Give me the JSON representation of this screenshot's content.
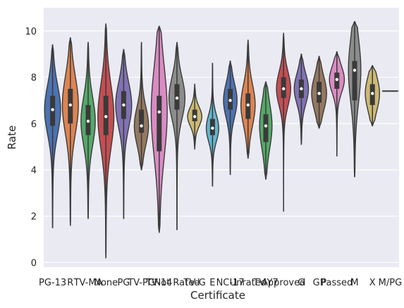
{
  "chart_data": {
    "type": "violin",
    "xlabel": "Certificate",
    "ylabel": "Rate",
    "ylim": [
      -0.2,
      11.0
    ],
    "yticks": [
      0,
      2,
      4,
      6,
      8,
      10
    ],
    "grid": true,
    "categories": [
      "PG-13",
      "R",
      "TV-MA",
      "None",
      "PG",
      "TV-PG",
      "TV-14",
      "Not Rated",
      "TV-G",
      "E",
      "NC-17",
      "Unrated",
      "TV-Y7",
      "Approved",
      "G",
      "GP",
      "Passed",
      "M",
      "X",
      "M/PG"
    ],
    "tick_labels": [
      "PG-13",
      "R",
      "TV-MA",
      "None",
      "PG",
      "TV-PG",
      "TV-14",
      "Not Rated",
      "TV-G",
      "E",
      "NC-17",
      "Unrated",
      "TV-Y7",
      "Approved",
      "G",
      "GP",
      "Passed",
      "M",
      "X",
      "M/PG"
    ],
    "series": [
      {
        "category": "PG-13",
        "color": "#4c72b0",
        "min": 1.5,
        "q1": 5.9,
        "median": 6.6,
        "q3": 7.2,
        "max": 9.4,
        "maxw": 0.45
      },
      {
        "category": "R",
        "color": "#dd8452",
        "min": 1.6,
        "q1": 6.0,
        "median": 6.8,
        "q3": 7.5,
        "max": 9.7,
        "maxw": 0.45
      },
      {
        "category": "TV-MA",
        "color": "#55a868",
        "min": 1.9,
        "q1": 5.5,
        "median": 6.1,
        "q3": 6.8,
        "max": 9.5,
        "maxw": 0.4
      },
      {
        "category": "None",
        "color": "#c44e52",
        "min": 0.2,
        "q1": 5.5,
        "median": 6.3,
        "q3": 7.2,
        "max": 10.3,
        "maxw": 0.45
      },
      {
        "category": "PG",
        "color": "#8172b3",
        "min": 1.9,
        "q1": 6.2,
        "median": 6.8,
        "q3": 7.4,
        "max": 9.2,
        "maxw": 0.45
      },
      {
        "category": "TV-PG",
        "color": "#937860",
        "min": 4.0,
        "q1": 5.6,
        "median": 5.9,
        "q3": 6.6,
        "max": 9.5,
        "maxw": 0.4
      },
      {
        "category": "TV-14",
        "color": "#da8bc3",
        "min": 1.3,
        "q1": 4.8,
        "median": 6.5,
        "q3": 7.2,
        "max": 10.2,
        "maxw": 0.45
      },
      {
        "category": "Not Rated",
        "color": "#8c8c8c",
        "min": 1.4,
        "q1": 6.6,
        "median": 7.1,
        "q3": 7.7,
        "max": 9.5,
        "maxw": 0.45
      },
      {
        "category": "TV-G",
        "color": "#ccb974",
        "min": 4.9,
        "q1": 6.1,
        "median": 6.3,
        "q3": 6.6,
        "max": 7.7,
        "maxw": 0.4
      },
      {
        "category": "E",
        "color": "#64b5cd",
        "min": 3.3,
        "q1": 5.5,
        "median": 5.8,
        "q3": 6.2,
        "max": 8.6,
        "maxw": 0.35
      },
      {
        "category": "NC-17",
        "color": "#4c72b0",
        "min": 3.8,
        "q1": 6.6,
        "median": 7.0,
        "q3": 7.5,
        "max": 8.7,
        "maxw": 0.38
      },
      {
        "category": "Unrated",
        "color": "#dd8452",
        "min": 4.5,
        "q1": 6.2,
        "median": 6.8,
        "q3": 7.3,
        "max": 9.6,
        "maxw": 0.4
      },
      {
        "category": "TV-Y7",
        "color": "#55a868",
        "min": 3.6,
        "q1": 5.2,
        "median": 5.9,
        "q3": 6.4,
        "max": 7.8,
        "maxw": 0.35
      },
      {
        "category": "Approved",
        "color": "#c44e52",
        "min": 2.2,
        "q1": 7.1,
        "median": 7.5,
        "q3": 8.0,
        "max": 9.9,
        "maxw": 0.4
      },
      {
        "category": "G",
        "color": "#8172b3",
        "min": 5.1,
        "q1": 7.1,
        "median": 7.5,
        "q3": 7.9,
        "max": 9.0,
        "maxw": 0.4
      },
      {
        "category": "GP",
        "color": "#937860",
        "min": 5.8,
        "q1": 6.9,
        "median": 7.3,
        "q3": 7.8,
        "max": 8.9,
        "maxw": 0.42
      },
      {
        "category": "Passed",
        "color": "#da8bc3",
        "min": 4.6,
        "q1": 7.5,
        "median": 7.9,
        "q3": 8.2,
        "max": 9.1,
        "maxw": 0.42
      },
      {
        "category": "M",
        "color": "#8c8c8c",
        "min": 3.7,
        "q1": 7.0,
        "median": 8.3,
        "q3": 8.7,
        "max": 10.4,
        "maxw": 0.35
      },
      {
        "category": "X",
        "color": "#ccb974",
        "min": 5.9,
        "q1": 6.8,
        "median": 7.3,
        "q3": 7.7,
        "max": 8.5,
        "maxw": 0.4
      },
      {
        "category": "M/PG",
        "color": "#64b5cd",
        "min": 7.4,
        "q1": 7.4,
        "median": 7.4,
        "q3": 7.4,
        "max": 7.4,
        "maxw": 0.45
      }
    ]
  }
}
